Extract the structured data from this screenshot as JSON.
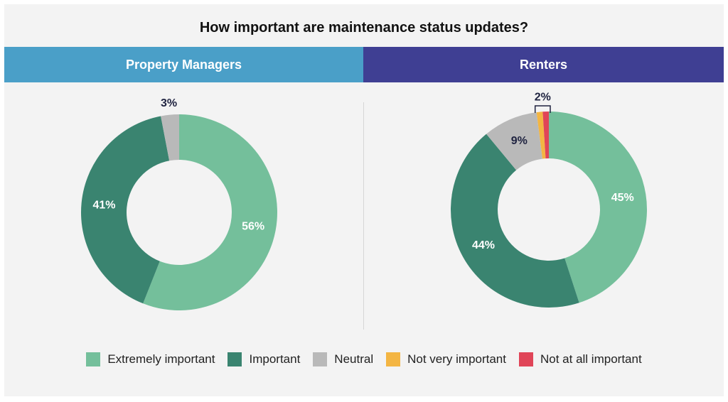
{
  "title": "How important are maintenance status updates?",
  "colors": {
    "extremely": "#74bf9b",
    "important": "#3a8470",
    "neutral": "#b9b9b9",
    "not_very": "#f3b543",
    "not_at_all": "#e04558",
    "pm_header": "#4a9fc8",
    "renters_header": "#3f3f93"
  },
  "legend": [
    {
      "label": "Extremely important",
      "color": "#74bf9b"
    },
    {
      "label": "Important",
      "color": "#3a8470"
    },
    {
      "label": "Neutral",
      "color": "#b9b9b9"
    },
    {
      "label": "Not very important",
      "color": "#f3b543"
    },
    {
      "label": "Not at all important",
      "color": "#e04558"
    }
  ],
  "chart_data": [
    {
      "type": "pie",
      "title": "Property Managers",
      "categories": [
        "Extremely important",
        "Important",
        "Neutral"
      ],
      "values": [
        56,
        41,
        3
      ],
      "labels": [
        "56%",
        "41%",
        "3%"
      ]
    },
    {
      "type": "pie",
      "title": "Renters",
      "categories": [
        "Extremely important",
        "Important",
        "Neutral",
        "Not very important",
        "Not at all important"
      ],
      "values": [
        45,
        44,
        9,
        1,
        1
      ],
      "labels": [
        "45%",
        "44%",
        "9%",
        "",
        ""
      ],
      "group_label": "2%"
    }
  ]
}
